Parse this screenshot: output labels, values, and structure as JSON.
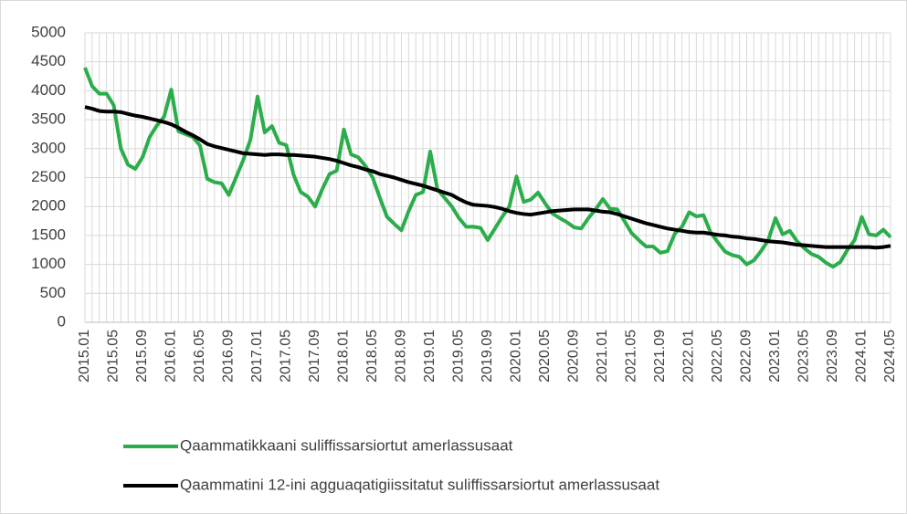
{
  "chart_data": {
    "type": "line",
    "categories": [
      "2015.01",
      null,
      null,
      null,
      "2015.05",
      null,
      null,
      null,
      "2015.09",
      null,
      null,
      null,
      "2016.01",
      null,
      null,
      null,
      "2016.05",
      null,
      null,
      null,
      "2016.09",
      null,
      null,
      null,
      "2017.01",
      null,
      null,
      null,
      "2017.05",
      null,
      null,
      null,
      "2017.09",
      null,
      null,
      null,
      "2018.01",
      null,
      null,
      null,
      "2018.05",
      null,
      null,
      null,
      "2018.09",
      null,
      null,
      null,
      "2019.01",
      null,
      null,
      null,
      "2019.05",
      null,
      null,
      null,
      "2019.09",
      null,
      null,
      null,
      "2020.01",
      null,
      null,
      null,
      "2020.05",
      null,
      null,
      null,
      "2020.09",
      null,
      null,
      null,
      "2021.01",
      null,
      null,
      null,
      "2021.05",
      null,
      null,
      null,
      "2021.09",
      null,
      null,
      null,
      "2022.01",
      null,
      null,
      null,
      "2022.05",
      null,
      null,
      null,
      "2022.09",
      null,
      null,
      null,
      "2023.01",
      null,
      null,
      null,
      "2023.05",
      null,
      null,
      null,
      "2023.09",
      null,
      null,
      null,
      "2024.01",
      null,
      null,
      null,
      "2024.05"
    ],
    "series": [
      {
        "name": "Qaammatikkaani suliffissarsiortut amerlassusaat",
        "color": "#2aad4a",
        "values": [
          4400,
          4080,
          3950,
          3950,
          3750,
          3000,
          2720,
          2650,
          2850,
          3200,
          3400,
          3550,
          4020,
          3300,
          3250,
          3200,
          3050,
          2480,
          2420,
          2400,
          2200,
          2500,
          2800,
          3150,
          3900,
          3280,
          3390,
          3100,
          3060,
          2550,
          2250,
          2170,
          2000,
          2300,
          2560,
          2620,
          3330,
          2900,
          2850,
          2700,
          2500,
          2150,
          1820,
          1700,
          1590,
          1920,
          2200,
          2250,
          2950,
          2300,
          2150,
          2000,
          1800,
          1650,
          1650,
          1630,
          1420,
          1620,
          1820,
          2000,
          2520,
          2080,
          2120,
          2240,
          2050,
          1880,
          1800,
          1730,
          1640,
          1620,
          1800,
          1950,
          2130,
          1960,
          1950,
          1750,
          1540,
          1420,
          1310,
          1310,
          1200,
          1230,
          1530,
          1650,
          1900,
          1830,
          1850,
          1550,
          1380,
          1220,
          1160,
          1130,
          1000,
          1070,
          1230,
          1420,
          1800,
          1520,
          1580,
          1400,
          1280,
          1180,
          1130,
          1030,
          960,
          1040,
          1250,
          1420,
          1820,
          1520,
          1500,
          1600,
          1470
        ]
      },
      {
        "name": "Qaammatini 12-ini agguaqatigiissitatut suliffissarsiortut amerlassusaat",
        "color": "#000000",
        "values": [
          3720,
          3690,
          3650,
          3640,
          3640,
          3630,
          3600,
          3570,
          3550,
          3520,
          3490,
          3460,
          3420,
          3360,
          3290,
          3230,
          3160,
          3080,
          3040,
          3010,
          2980,
          2950,
          2920,
          2910,
          2900,
          2890,
          2900,
          2900,
          2890,
          2890,
          2880,
          2870,
          2860,
          2840,
          2820,
          2790,
          2750,
          2710,
          2680,
          2640,
          2610,
          2560,
          2530,
          2500,
          2460,
          2420,
          2390,
          2360,
          2320,
          2280,
          2240,
          2200,
          2130,
          2070,
          2030,
          2020,
          2010,
          1990,
          1960,
          1920,
          1890,
          1870,
          1860,
          1880,
          1900,
          1920,
          1930,
          1940,
          1950,
          1950,
          1950,
          1930,
          1910,
          1900,
          1870,
          1830,
          1790,
          1750,
          1710,
          1680,
          1650,
          1620,
          1600,
          1580,
          1560,
          1550,
          1550,
          1530,
          1510,
          1500,
          1480,
          1470,
          1450,
          1440,
          1420,
          1400,
          1390,
          1380,
          1360,
          1340,
          1330,
          1320,
          1310,
          1300,
          1300,
          1300,
          1300,
          1300,
          1300,
          1300,
          1290,
          1300,
          1320
        ]
      }
    ],
    "ylim": [
      0,
      5000
    ],
    "yticks": [
      0,
      500,
      1000,
      1500,
      2000,
      2500,
      3000,
      3500,
      4000,
      4500,
      5000
    ],
    "grid": true
  }
}
